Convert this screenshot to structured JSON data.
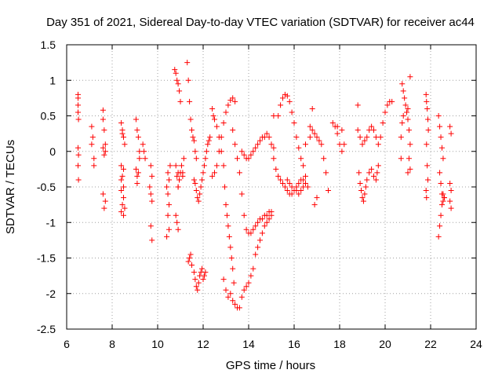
{
  "chart_data": {
    "type": "scatter",
    "title": "Day 351 of 2021, Sidereal Day-to-day VTEC variation (SDTVAR) for receiver ac44",
    "xlabel": "GPS time / hours",
    "ylabel": "SDTVAR / TECUs",
    "xlim": [
      6,
      24
    ],
    "ylim": [
      -2.5,
      1.5
    ],
    "xticks": [
      6,
      8,
      10,
      12,
      14,
      16,
      18,
      20,
      22,
      24
    ],
    "yticks": [
      1.5,
      1,
      0.5,
      0,
      -0.5,
      -1,
      -1.5,
      -2,
      -2.5
    ],
    "xtick_labels": [
      "6",
      "8",
      "10",
      "12",
      "14",
      "16",
      "18",
      "20",
      "22",
      "24"
    ],
    "ytick_labels": [
      "1.5",
      "1",
      "0.5",
      "0",
      "-0.5",
      "-1",
      "-1.5",
      "-2",
      "-2.5"
    ],
    "grid": true,
    "marker": "+",
    "series": [
      {
        "name": "SDTVAR",
        "color": "#ff0000",
        "x": [
          6.5,
          6.5,
          6.5,
          6.52,
          6.5,
          6.52,
          6.5,
          6.52,
          6.5,
          7.1,
          7.1,
          7.2,
          7.2,
          7.15,
          7.6,
          7.6,
          7.65,
          7.7,
          7.6,
          7.7,
          7.65,
          7.7,
          7.6,
          7.65,
          8.4,
          8.45,
          8.5,
          8.55,
          8.4,
          8.45,
          8.5,
          8.4,
          8.5,
          8.45,
          8.55,
          8.4,
          8.5,
          8.4,
          8.5,
          8.45,
          9.05,
          9.1,
          9.15,
          9.2,
          9.05,
          9.1,
          9.1,
          9.15,
          9.2,
          9.35,
          9.4,
          9.45,
          9.7,
          9.75,
          9.65,
          9.7,
          9.75,
          9.7,
          9.75,
          10.4,
          10.45,
          10.5,
          10.45,
          10.5,
          10.4,
          10.45,
          10.5,
          10.55,
          10.75,
          10.8,
          10.85,
          10.9,
          10.95,
          11.0,
          10.8,
          10.85,
          10.9,
          10.9,
          10.95,
          11.0,
          11.05,
          11.1,
          11.15,
          10.8,
          10.85,
          10.9,
          10.9,
          10.95,
          11.1,
          11.3,
          11.35,
          11.4,
          11.45,
          11.5,
          11.55,
          11.6,
          11.65,
          11.7,
          11.35,
          11.4,
          11.45,
          11.5,
          11.6,
          11.65,
          11.7,
          11.75,
          11.8,
          11.85,
          11.9,
          11.95,
          12.0,
          12.05,
          12.1,
          11.6,
          11.65,
          11.7,
          11.75,
          11.8,
          11.85,
          11.9,
          11.95,
          12.0,
          12.05,
          12.1,
          12.15,
          12.2,
          12.25,
          12.3,
          12.4,
          12.5,
          12.6,
          12.7,
          12.8,
          12.9,
          13.0,
          13.1,
          13.2,
          13.3,
          13.4,
          12.4,
          12.45,
          12.5,
          12.6,
          12.7,
          12.8,
          12.9,
          12.95,
          13.0,
          13.05,
          13.1,
          13.15,
          13.2,
          13.25,
          13.3,
          13.35,
          12.9,
          13.0,
          13.1,
          13.2,
          13.3,
          13.4,
          13.5,
          13.6,
          13.7,
          13.8,
          13.9,
          14.0,
          14.1,
          14.2,
          14.3,
          14.4,
          14.5,
          14.6,
          14.7,
          14.8,
          14.9,
          15.0,
          15.1,
          13.3,
          13.4,
          13.5,
          13.6,
          13.7,
          13.8,
          13.9,
          14.0,
          14.1,
          14.2,
          14.3,
          14.4,
          14.5,
          14.6,
          14.7,
          14.8,
          14.9,
          15.0,
          15.1,
          13.7,
          13.8,
          13.9,
          14.0,
          14.1,
          14.2,
          14.3,
          14.4,
          14.5,
          14.6,
          14.7,
          14.8,
          14.9,
          15.0,
          15.1,
          15.2,
          15.3,
          15.4,
          15.5,
          15.6,
          15.7,
          15.8,
          15.9,
          16.0,
          16.1,
          16.2,
          16.3,
          16.4,
          16.5,
          16.6,
          16.7,
          15.3,
          15.4,
          15.5,
          15.6,
          15.7,
          15.8,
          15.9,
          16.0,
          16.1,
          16.2,
          16.3,
          16.4,
          16.5,
          15.7,
          15.8,
          15.9,
          16.0,
          16.1,
          16.2,
          16.3,
          16.4,
          16.5,
          16.7,
          16.8,
          16.9,
          17.0,
          17.1,
          17.2,
          17.3,
          17.4,
          17.5,
          17.0,
          16.9,
          16.8,
          17.7,
          17.8,
          17.9,
          18.0,
          18.1,
          18.2,
          18.1,
          17.9,
          18.8,
          18.9,
          19.0,
          19.1,
          19.2,
          19.3,
          19.4,
          19.5,
          19.6,
          19.7,
          19.8,
          19.9,
          20.0,
          20.1,
          20.2,
          20.3,
          18.8,
          18.85,
          18.9,
          18.95,
          19.0,
          19.05,
          19.1,
          19.15,
          19.2,
          19.3,
          19.4,
          19.5,
          19.6,
          19.65,
          19.7,
          20.7,
          20.75,
          20.8,
          20.85,
          20.9,
          20.95,
          21.0,
          21.05,
          21.1,
          20.7,
          20.75,
          20.8,
          21.0,
          21.05,
          21.1,
          21.0,
          21.1,
          21.8,
          21.82,
          21.85,
          21.88,
          21.9,
          21.82,
          21.85,
          21.88,
          21.8,
          21.82,
          22.35,
          22.4,
          22.45,
          22.5,
          22.55,
          22.6,
          22.35,
          22.4,
          22.45,
          22.5,
          22.55,
          22.4,
          22.45,
          22.5,
          22.55,
          22.6,
          22.85,
          22.9,
          22.85,
          22.9,
          22.85,
          22.9
        ]
      }
    ],
    "y": [
      0.75,
      0.65,
      0.55,
      0.45,
      0.05,
      -0.05,
      -0.2,
      -0.4,
      0.8,
      0.35,
      0.1,
      -0.1,
      -0.2,
      0.2,
      0.58,
      0.45,
      0.3,
      0.1,
      -0.6,
      -0.7,
      -0.8,
      0.0,
      0.05,
      -0.05,
      0.4,
      0.3,
      0.2,
      0.1,
      -0.2,
      -0.35,
      -0.5,
      -0.55,
      -0.65,
      -0.75,
      -0.8,
      -0.85,
      -0.9,
      -0.4,
      -0.25,
      0.25,
      0.45,
      0.3,
      0.2,
      0.0,
      -0.25,
      -0.35,
      -0.45,
      -0.3,
      -0.1,
      0.1,
      0.0,
      -0.1,
      -0.2,
      -0.35,
      -0.5,
      -0.6,
      -0.7,
      -1.05,
      -1.25,
      -0.5,
      -0.6,
      -0.75,
      -0.9,
      -1.1,
      -1.2,
      -0.3,
      -0.4,
      -0.2,
      1.15,
      1.1,
      1.0,
      0.95,
      0.85,
      0.7,
      -0.9,
      -1.0,
      -1.1,
      -0.5,
      -0.4,
      -0.3,
      -0.2,
      -0.3,
      -0.1,
      -0.2,
      -0.35,
      -0.5,
      -0.3,
      -0.4,
      -0.35,
      1.25,
      1.0,
      0.7,
      0.45,
      0.3,
      0.2,
      0.15,
      0.0,
      -0.1,
      -1.55,
      -1.5,
      -1.45,
      -1.6,
      -1.7,
      -1.8,
      -1.9,
      -1.95,
      -1.85,
      -1.75,
      -1.7,
      -1.65,
      -1.8,
      -1.75,
      -1.7,
      -0.4,
      -0.45,
      -0.55,
      -0.65,
      -0.7,
      -0.6,
      -0.5,
      -0.4,
      -0.3,
      -0.2,
      -0.1,
      0.0,
      0.1,
      0.15,
      0.2,
      -0.35,
      -0.3,
      -0.2,
      0.0,
      0.2,
      0.4,
      0.55,
      0.65,
      0.72,
      0.75,
      0.7,
      0.6,
      0.5,
      0.45,
      0.35,
      0.2,
      0.0,
      -0.2,
      -0.5,
      -0.75,
      -0.9,
      -1.05,
      -1.2,
      -1.35,
      -1.5,
      -1.65,
      -1.85,
      -1.8,
      -1.95,
      -2.05,
      -2.0,
      -2.1,
      -2.15,
      -2.2,
      -2.2,
      -2.05,
      -1.95,
      -1.9,
      -1.85,
      -1.75,
      -1.65,
      -1.45,
      -1.35,
      -1.25,
      -1.15,
      -1.05,
      -1.0,
      -0.95,
      -0.9,
      0.5,
      0.3,
      0.1,
      -0.1,
      -0.3,
      -0.6,
      -0.9,
      -1.1,
      -1.15,
      -1.15,
      -1.1,
      -1.05,
      -1.0,
      -0.95,
      -0.95,
      -0.9,
      -0.9,
      -0.85,
      -0.85,
      0.05,
      0.0,
      -0.05,
      -0.1,
      -0.1,
      -0.05,
      0.0,
      0.05,
      0.1,
      0.15,
      0.2,
      0.2,
      0.25,
      0.2,
      0.1,
      -0.1,
      -0.25,
      -0.35,
      -0.4,
      -0.45,
      -0.5,
      -0.55,
      -0.6,
      -0.6,
      -0.55,
      -0.5,
      -0.45,
      -0.4,
      -0.4,
      -0.45,
      -0.5,
      0.35,
      0.5,
      0.65,
      0.75,
      0.8,
      0.78,
      0.7,
      0.55,
      0.4,
      0.2,
      0.05,
      -0.1,
      -0.2,
      -0.35,
      -0.4,
      -0.45,
      -0.5,
      -0.55,
      -0.55,
      -0.6,
      -0.55,
      -0.5,
      0.1,
      0.2,
      0.3,
      0.25,
      0.2,
      0.15,
      0.1,
      -0.1,
      -0.3,
      -0.55,
      -0.65,
      -0.75,
      0.6,
      0.4,
      0.35,
      0.25,
      0.1,
      0.0,
      0.1,
      0.3,
      0.35,
      0.3,
      0.2,
      0.1,
      0.15,
      0.2,
      0.3,
      0.35,
      0.3,
      0.2,
      0.1,
      0.2,
      0.4,
      0.55,
      0.65,
      0.7,
      0.7,
      0.65,
      -0.3,
      -0.45,
      -0.55,
      -0.65,
      -0.7,
      -0.6,
      -0.5,
      -0.4,
      -0.3,
      -0.25,
      -0.35,
      -0.4,
      -0.3,
      -0.2,
      -0.1,
      0.95,
      0.85,
      0.75,
      0.65,
      0.55,
      0.45,
      0.3,
      0.1,
      0.2,
      0.4,
      0.5,
      0.6,
      -0.1,
      -0.25,
      -0.3,
      1.05,
      0.8,
      0.7,
      0.6,
      0.45,
      0.3,
      0.1,
      -0.2,
      -0.4,
      -0.55,
      -0.65,
      -1.2,
      -1.05,
      -0.9,
      -0.75,
      -0.6,
      -0.65,
      0.5,
      0.35,
      0.2,
      0.05,
      -0.1,
      -0.3,
      -0.45,
      -0.6,
      -0.7,
      -0.65,
      0.35,
      0.25,
      -0.45,
      -0.55,
      -0.7,
      -0.8
    ]
  }
}
